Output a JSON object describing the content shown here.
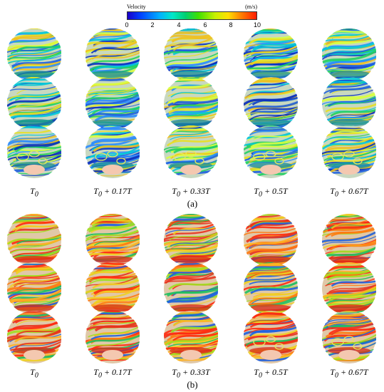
{
  "colorbar": {
    "title": "Velocity",
    "unit": "(m/s)",
    "ticks": [
      "0",
      "2",
      "4",
      "6",
      "8",
      "10"
    ]
  },
  "time_labels": [
    "T0",
    "T0 + 0.17T",
    "T0 + 0.33T",
    "T0 + 0.5T",
    "T0 + 0.67T"
  ],
  "panels": [
    {
      "label": "(a)",
      "palette": "blue"
    },
    {
      "label": "(b)",
      "palette": "red"
    }
  ],
  "colors": {
    "blue_dominant": "#1e5fe0",
    "red_dominant": "#e8321e",
    "ellipse": "#e8e85a"
  }
}
